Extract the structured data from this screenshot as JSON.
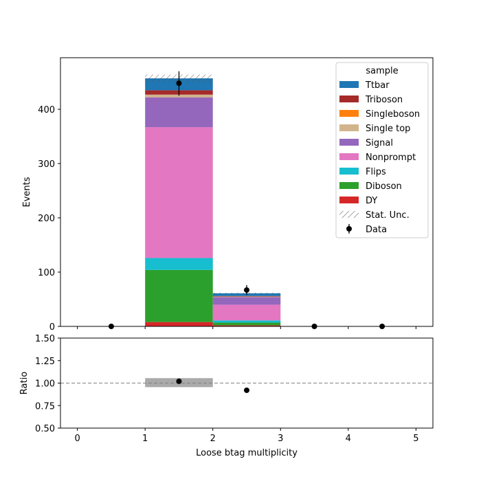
{
  "chart_data": {
    "type": "bar",
    "stacked": true,
    "x": {
      "label": "Loose btag multiplicity",
      "range": [
        -0.25,
        5.25
      ],
      "ticks": [
        0,
        1,
        2,
        3,
        4,
        5
      ],
      "bin_edges": [
        0,
        1,
        2,
        3,
        4,
        5
      ],
      "bin_centers": [
        0.5,
        1.5,
        2.5,
        3.5,
        4.5
      ]
    },
    "main_panel": {
      "ylabel": "Events",
      "ylim": [
        0,
        495
      ],
      "yticks": [
        0,
        100,
        200,
        300,
        400
      ],
      "series": [
        {
          "name": "DY",
          "color": "#d62728",
          "values": [
            0,
            8,
            2,
            0,
            0
          ]
        },
        {
          "name": "Diboson",
          "color": "#2ca02c",
          "values": [
            0,
            96,
            5,
            0,
            0
          ]
        },
        {
          "name": "Flips",
          "color": "#17becf",
          "values": [
            0,
            22,
            4,
            0,
            0
          ]
        },
        {
          "name": "Nonprompt",
          "color": "#e377c2",
          "values": [
            0,
            241,
            29,
            0,
            0
          ]
        },
        {
          "name": "Signal",
          "color": "#9467bd",
          "values": [
            0,
            55,
            14,
            0,
            0
          ]
        },
        {
          "name": "Single top",
          "color": "#d2b48c",
          "values": [
            0,
            5,
            1,
            0,
            0
          ]
        },
        {
          "name": "Singleboson",
          "color": "#ff7f0e",
          "values": [
            0,
            0,
            0,
            0,
            0
          ]
        },
        {
          "name": "Triboson",
          "color": "#a52a2a",
          "values": [
            0,
            8,
            1,
            0,
            0
          ]
        },
        {
          "name": "Ttbar",
          "color": "#1f77b4",
          "values": [
            0,
            22,
            5,
            0,
            0
          ]
        }
      ],
      "stat_unc": {
        "name": "Stat. Unc.",
        "total": [
          0,
          457,
          61,
          0,
          0
        ],
        "up": [
          0,
          464,
          62,
          0,
          0
        ],
        "down": [
          0,
          450,
          60,
          0,
          0
        ]
      },
      "data": {
        "name": "Data",
        "color": "#000000",
        "values": [
          0,
          448,
          67,
          0,
          0
        ],
        "err_low": [
          0,
          23,
          9,
          0,
          0
        ],
        "err_high": [
          0,
          22,
          9,
          0,
          0
        ]
      },
      "legend": {
        "title": "sample",
        "placement": "top-right",
        "entries": [
          "Ttbar",
          "Triboson",
          "Singleboson",
          "Single top",
          "Signal",
          "Nonprompt",
          "Flips",
          "Diboson",
          "DY",
          "Stat. Unc.",
          "Data"
        ]
      }
    },
    "ratio_panel": {
      "ylabel": "Ratio",
      "ylim": [
        0.5,
        1.5
      ],
      "yticks": [
        0.5,
        0.75,
        1.0,
        1.25,
        1.5
      ],
      "ytick_labels": [
        "0.50",
        "0.75",
        "1.00",
        "1.25",
        "1.50"
      ],
      "reference_line": 1.0,
      "unc_band": [
        {
          "x0": 1,
          "x1": 2,
          "low": 0.955,
          "high": 1.055
        }
      ],
      "points": [
        {
          "x": 1.5,
          "y": 1.02
        },
        {
          "x": 2.5,
          "y": 0.92
        }
      ],
      "color": "#000000",
      "band_color": "#aaaaaa"
    }
  }
}
